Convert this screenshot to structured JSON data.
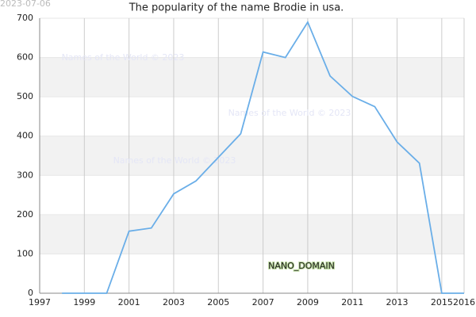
{
  "chart_data": {
    "type": "line",
    "title": "The popularity of the name Brodie in usa.",
    "date_stamp": "2023-07-06",
    "watermarks": [
      "Names of the World © 2023",
      "Names of the World © 2023",
      "Names of the World © 2023"
    ],
    "domain_label": "NANO_DOMAIN",
    "x": [
      1998,
      1999,
      2000,
      2001,
      2002,
      2003,
      2004,
      2005,
      2006,
      2007,
      2008,
      2009,
      2010,
      2011,
      2012,
      2013,
      2014,
      2015,
      2016
    ],
    "series": [
      {
        "color": "#6aaee8",
        "values": [
          0,
          0,
          0,
          158,
          166,
          253,
          286,
          346,
          406,
          614,
          600,
          690,
          553,
          501,
          475,
          385,
          331,
          0,
          0
        ]
      }
    ],
    "xlim": [
      1997,
      2016
    ],
    "xticks": [
      1997,
      1999,
      2001,
      2003,
      2005,
      2007,
      2009,
      2011,
      2013,
      2015,
      2016
    ],
    "ylim": [
      0,
      700
    ],
    "yticks": [
      0,
      100,
      200,
      300,
      400,
      500,
      600,
      700
    ],
    "grid": true
  }
}
